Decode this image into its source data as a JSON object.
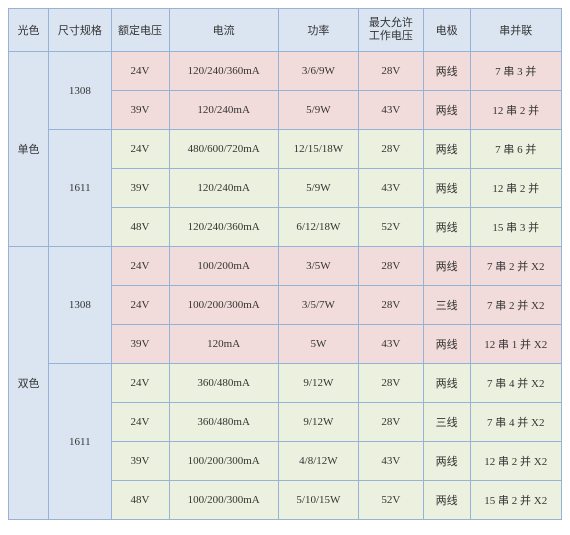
{
  "headers": {
    "light_color": "光色",
    "size": "尺寸规格",
    "rated_voltage": "额定电压",
    "current": "电流",
    "power": "功率",
    "max_voltage_l1": "最大允许",
    "max_voltage_l2": "工作电压",
    "electrode": "电极",
    "series_parallel": "串并联"
  },
  "groups": [
    {
      "label": "单色",
      "sizes": [
        {
          "label": "1308",
          "row_class": "pink",
          "rows": [
            {
              "rv": "24V",
              "cur": "120/240/360mA",
              "pow": "3/6/9W",
              "mv": "28V",
              "el": "两线",
              "sp": "7 串 3 并"
            },
            {
              "rv": "39V",
              "cur": "120/240mA",
              "pow": "5/9W",
              "mv": "43V",
              "el": "两线",
              "sp": "12 串 2 并"
            }
          ]
        },
        {
          "label": "1611",
          "row_class": "green",
          "rows": [
            {
              "rv": "24V",
              "cur": "480/600/720mA",
              "pow": "12/15/18W",
              "mv": "28V",
              "el": "两线",
              "sp": "7 串 6 并"
            },
            {
              "rv": "39V",
              "cur": "120/240mA",
              "pow": "5/9W",
              "mv": "43V",
              "el": "两线",
              "sp": "12 串 2 并"
            },
            {
              "rv": "48V",
              "cur": "120/240/360mA",
              "pow": "6/12/18W",
              "mv": "52V",
              "el": "两线",
              "sp": "15 串 3 并"
            }
          ]
        }
      ]
    },
    {
      "label": "双色",
      "sizes": [
        {
          "label": "1308",
          "row_class": "pink",
          "rows": [
            {
              "rv": "24V",
              "cur": "100/200mA",
              "pow": "3/5W",
              "mv": "28V",
              "el": "两线",
              "sp": "7 串 2 并 X2"
            },
            {
              "rv": "24V",
              "cur": "100/200/300mA",
              "pow": "3/5/7W",
              "mv": "28V",
              "el": "三线",
              "sp": "7 串 2 并 X2"
            },
            {
              "rv": "39V",
              "cur": "120mA",
              "pow": "5W",
              "mv": "43V",
              "el": "两线",
              "sp": "12 串 1 并 X2"
            }
          ]
        },
        {
          "label": "1611",
          "row_class": "green",
          "rows": [
            {
              "rv": "24V",
              "cur": "360/480mA",
              "pow": "9/12W",
              "mv": "28V",
              "el": "两线",
              "sp": "7 串 4 并 X2"
            },
            {
              "rv": "24V",
              "cur": "360/480mA",
              "pow": "9/12W",
              "mv": "28V",
              "el": "三线",
              "sp": "7 串 4 并 X2"
            },
            {
              "rv": "39V",
              "cur": "100/200/300mA",
              "pow": "4/8/12W",
              "mv": "43V",
              "el": "两线",
              "sp": "12 串 2 并 X2"
            },
            {
              "rv": "48V",
              "cur": "100/200/300mA",
              "pow": "5/10/15W",
              "mv": "52V",
              "el": "两线",
              "sp": "15 串 2 并 X2"
            }
          ]
        }
      ]
    }
  ]
}
